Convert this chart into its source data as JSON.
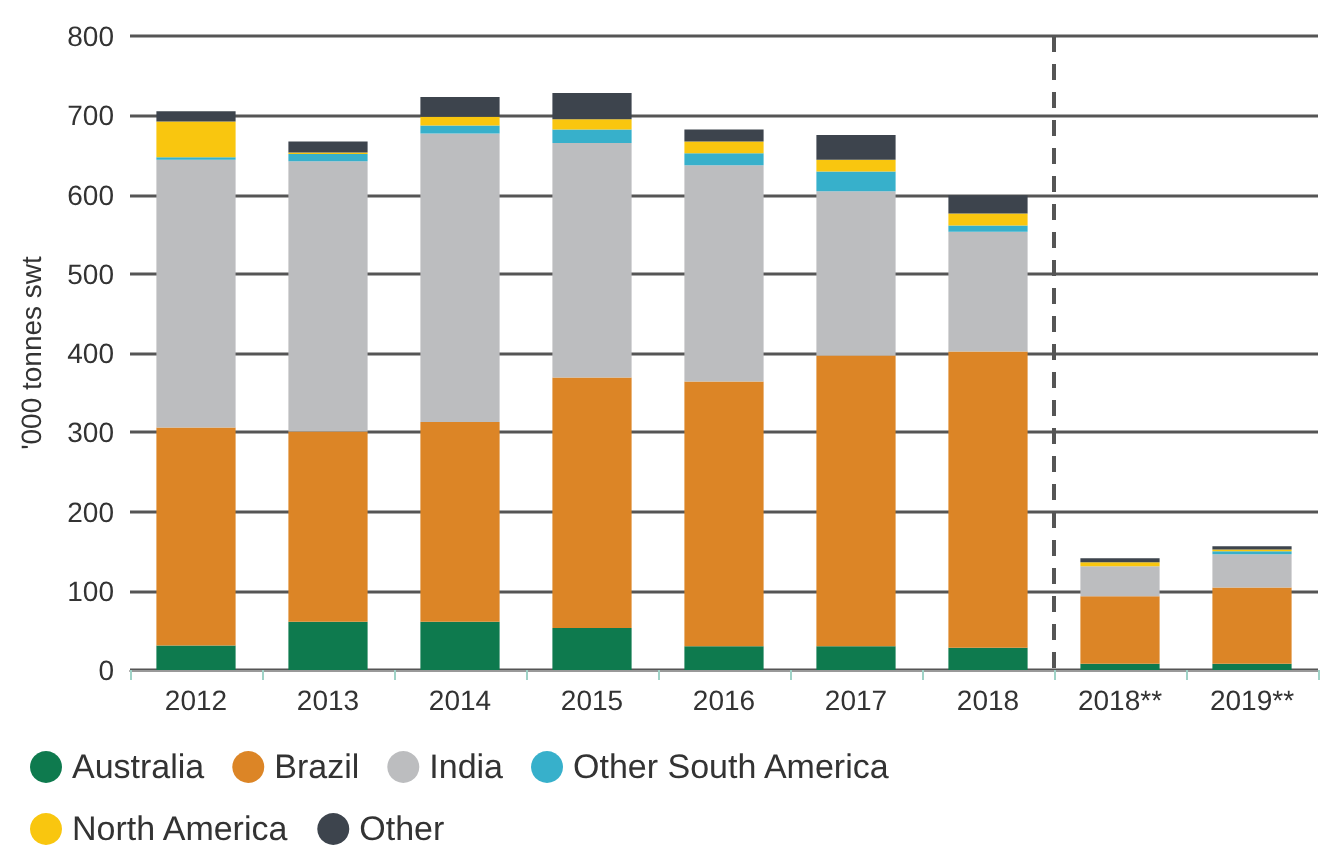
{
  "chart_data": {
    "type": "bar",
    "stacked": true,
    "ylabel": "'000 tonnes swt",
    "categories": [
      "2012",
      "2013",
      "2014",
      "2015",
      "2016",
      "2017",
      "2018",
      "2018**",
      "2019**"
    ],
    "series": [
      {
        "name": "Australia",
        "color": "#0e7a4e",
        "values": [
          31,
          61,
          61,
          53,
          30,
          30,
          28,
          8,
          8
        ]
      },
      {
        "name": "Brazil",
        "color": "#dc8526",
        "values": [
          275,
          240,
          252,
          316,
          334,
          367,
          374,
          85,
          96
        ]
      },
      {
        "name": "India",
        "color": "#bcbdbf",
        "values": [
          338,
          341,
          364,
          296,
          273,
          207,
          151,
          38,
          42
        ]
      },
      {
        "name": "Other South America",
        "color": "#37b0cb",
        "values": [
          3,
          9,
          10,
          17,
          15,
          25,
          8,
          0,
          4
        ]
      },
      {
        "name": "North America",
        "color": "#f9c60f",
        "values": [
          45,
          2,
          11,
          13,
          15,
          15,
          15,
          5,
          2
        ]
      },
      {
        "name": "Other",
        "color": "#3d444d",
        "values": [
          13,
          14,
          25,
          33,
          15,
          31,
          23,
          5,
          4
        ]
      }
    ],
    "ylim": [
      0,
      800
    ],
    "yticks": [
      0,
      100,
      200,
      300,
      400,
      500,
      600,
      700,
      800
    ],
    "grid": "y",
    "legend": "bottom",
    "ref_lines": [
      {
        "axis": "x",
        "value": "2018**",
        "color": "#555555",
        "line_style": "dashed"
      }
    ]
  }
}
